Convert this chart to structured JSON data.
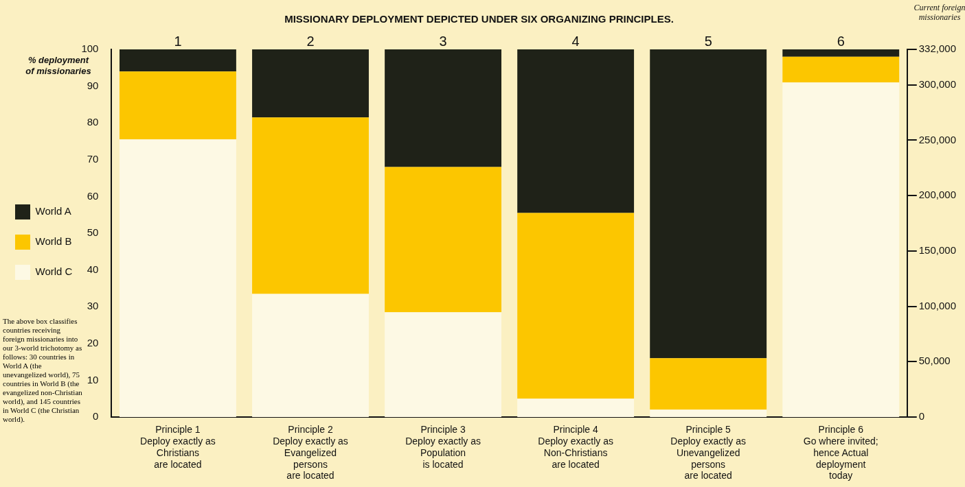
{
  "chart_data": {
    "type": "bar",
    "stacked": true,
    "title": "MISSIONARY DEPLOYMENT DEPICTED UNDER SIX ORGANIZING PRINCIPLES.",
    "categories": [
      "Principle 1\nDeploy exactly as\nChristians\nare located",
      "Principle 2\nDeploy exactly as\nEvangelized\npersons\nare located",
      "Principle 3\nDeploy exactly as\nPopulation\nis located",
      "Principle 4\nDeploy exactly as\nNon-Christians\nare located",
      "Principle 5\nDeploy exactly as\nUnevangelized\npersons\nare located",
      "Principle 6\nGo where invited;\nhence Actual\ndeployment\ntoday"
    ],
    "series": [
      {
        "name": "World C",
        "color": "#fdf9e4",
        "values": [
          75.5,
          33.5,
          28.5,
          5,
          2,
          91
        ]
      },
      {
        "name": "World B",
        "color": "#fcc600",
        "values": [
          18.5,
          48,
          39.5,
          50.5,
          14,
          7
        ]
      },
      {
        "name": "World A",
        "color": "#1f2218",
        "values": [
          6,
          18.5,
          32,
          44.5,
          84,
          2
        ]
      }
    ],
    "ylabel": "% deployment of missionaries",
    "y2label": "Current foreign missionaries",
    "ylim": [
      0,
      100
    ],
    "yticks": [
      0,
      10,
      20,
      30,
      40,
      50,
      60,
      70,
      80,
      90,
      100
    ],
    "y2lim": [
      0,
      332000
    ],
    "y2ticks": [
      0,
      {
        "value": 50000,
        "label": "50,000"
      },
      {
        "value": 100000,
        "label": "100,000"
      },
      {
        "value": 150000,
        "label": "150,000"
      },
      {
        "value": 200000,
        "label": "200,000"
      },
      {
        "value": 250000,
        "label": "250,000"
      },
      {
        "value": 300000,
        "label": "300,000"
      },
      {
        "value": 332000,
        "label": "332,000"
      }
    ],
    "legend": "left",
    "grid": false,
    "annotations": [
      {
        "text": "1",
        "x": "Principle 1\nDeploy exactly as\nChristians\nare located",
        "y": 100
      },
      {
        "text": "2",
        "x": "Principle 2\nDeploy exactly as\nEvangelized\npersons\nare located",
        "y": 100
      },
      {
        "text": "3",
        "x": "Principle 3\nDeploy exactly as\nPopulation\nis located",
        "y": 100
      },
      {
        "text": "4",
        "x": "Principle 4\nDeploy exactly as\nNon-Christians\nare located",
        "y": 100
      },
      {
        "text": "5",
        "x": "Principle 5\nDeploy exactly as\nUnevangelized\npersons\nare located",
        "y": 100
      },
      {
        "text": "6",
        "x": "Principle 6\nGo where invited;\nhence Actual\ndeployment\ntoday",
        "y": 100
      },
      "The above box classifies countries receiving foreign missionaries into our 3-world trichotomy as follows: 30 countries in World A (the unevangelized world), 75 countries in World B (the evangelized non-Christian world), and 145 countries in World C (the Christian world)."
    ]
  }
}
